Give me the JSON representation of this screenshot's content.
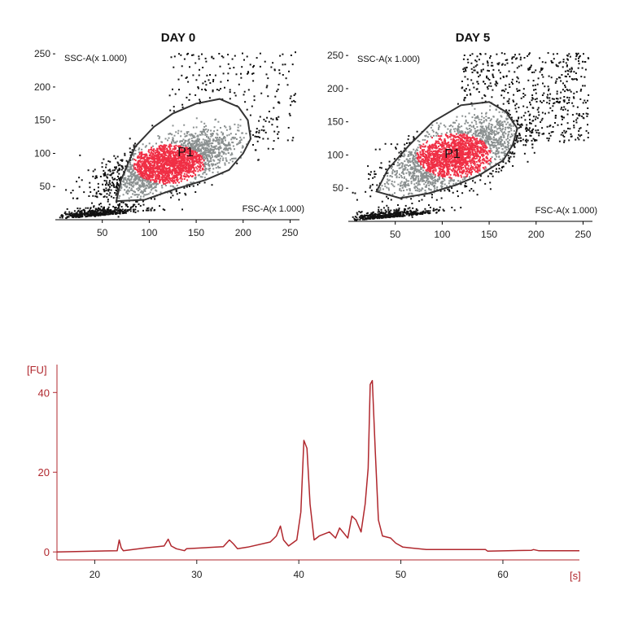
{
  "colors": {
    "accent": "#b0272d",
    "gated": "#f02f45",
    "ungated": "#8a9090",
    "outside": "#111111",
    "gate_line": "#333333"
  },
  "chart_data": [
    {
      "type": "scatter",
      "title": "DAY 0",
      "xlabel": "FSC-A(x 1.000)",
      "ylabel": "SSC-A(x 1.000)",
      "xlim": [
        0,
        260
      ],
      "ylim": [
        0,
        260
      ],
      "xticks": [
        50,
        100,
        150,
        200,
        250
      ],
      "yticks": [
        50,
        100,
        150,
        200,
        250
      ],
      "gate_label": "P1",
      "gate_polygon": [
        [
          65,
          28
        ],
        [
          70,
          60
        ],
        [
          85,
          110
        ],
        [
          105,
          140
        ],
        [
          125,
          160
        ],
        [
          150,
          175
        ],
        [
          175,
          182
        ],
        [
          195,
          170
        ],
        [
          205,
          150
        ],
        [
          208,
          122
        ],
        [
          200,
          100
        ],
        [
          185,
          75
        ],
        [
          160,
          60
        ],
        [
          125,
          45
        ],
        [
          95,
          30
        ]
      ],
      "population": {
        "center": [
          120,
          85
        ],
        "spread": [
          38,
          30
        ],
        "rotation_deg": 30
      }
    },
    {
      "type": "scatter",
      "title": "DAY 5",
      "xlabel": "FSC-A(x 1.000)",
      "ylabel": "SSC-A(x 1.000)",
      "xlim": [
        0,
        260
      ],
      "ylim": [
        0,
        260
      ],
      "xticks": [
        50,
        100,
        150,
        200,
        250
      ],
      "yticks": [
        50,
        100,
        150,
        200,
        250
      ],
      "gate_label": "P1",
      "gate_polygon": [
        [
          30,
          45
        ],
        [
          42,
          78
        ],
        [
          65,
          115
        ],
        [
          90,
          150
        ],
        [
          120,
          175
        ],
        [
          150,
          180
        ],
        [
          168,
          165
        ],
        [
          180,
          140
        ],
        [
          175,
          115
        ],
        [
          165,
          92
        ],
        [
          140,
          70
        ],
        [
          115,
          55
        ],
        [
          85,
          42
        ],
        [
          55,
          35
        ]
      ],
      "population": {
        "center": [
          112,
          100
        ],
        "spread": [
          40,
          34
        ],
        "rotation_deg": 35
      }
    },
    {
      "type": "line",
      "title": "",
      "ylabel": "[FU]",
      "xlabel": "[s]",
      "xlim": [
        16.3,
        67.5
      ],
      "ylim": [
        -2,
        47
      ],
      "xticks": [
        20,
        30,
        40,
        50,
        60
      ],
      "yticks": [
        0,
        20,
        40
      ],
      "x": [
        16.3,
        22.2,
        22.4,
        22.6,
        22.8,
        25,
        26.8,
        27.2,
        27.5,
        28,
        28.8,
        29,
        32.6,
        33.2,
        33.6,
        34,
        35,
        37.2,
        37.8,
        38.2,
        38.5,
        39,
        39.8,
        40.2,
        40.5,
        40.8,
        41.1,
        41.5,
        42,
        43,
        43.6,
        44,
        44.8,
        45.2,
        45.6,
        46.1,
        46.5,
        46.8,
        47,
        47.2,
        47.5,
        47.8,
        48.2,
        49,
        49.5,
        50.2,
        52.5,
        58.3,
        58.5,
        62.8,
        63,
        63.5,
        67.5
      ],
      "y": [
        0,
        0.3,
        3,
        1,
        0.3,
        1,
        1.5,
        3.2,
        1.5,
        0.8,
        0.3,
        0.8,
        1.3,
        3,
        2,
        0.8,
        1.2,
        2.5,
        4,
        6.5,
        3,
        1.5,
        3,
        10,
        28,
        26,
        12,
        3,
        4,
        5,
        3.5,
        6,
        3.5,
        9,
        8,
        5,
        12,
        21,
        42,
        43,
        25,
        8,
        4,
        3.5,
        2.2,
        1.2,
        0.6,
        0.6,
        0.2,
        0.4,
        0.6,
        0.3,
        0.3
      ]
    }
  ]
}
